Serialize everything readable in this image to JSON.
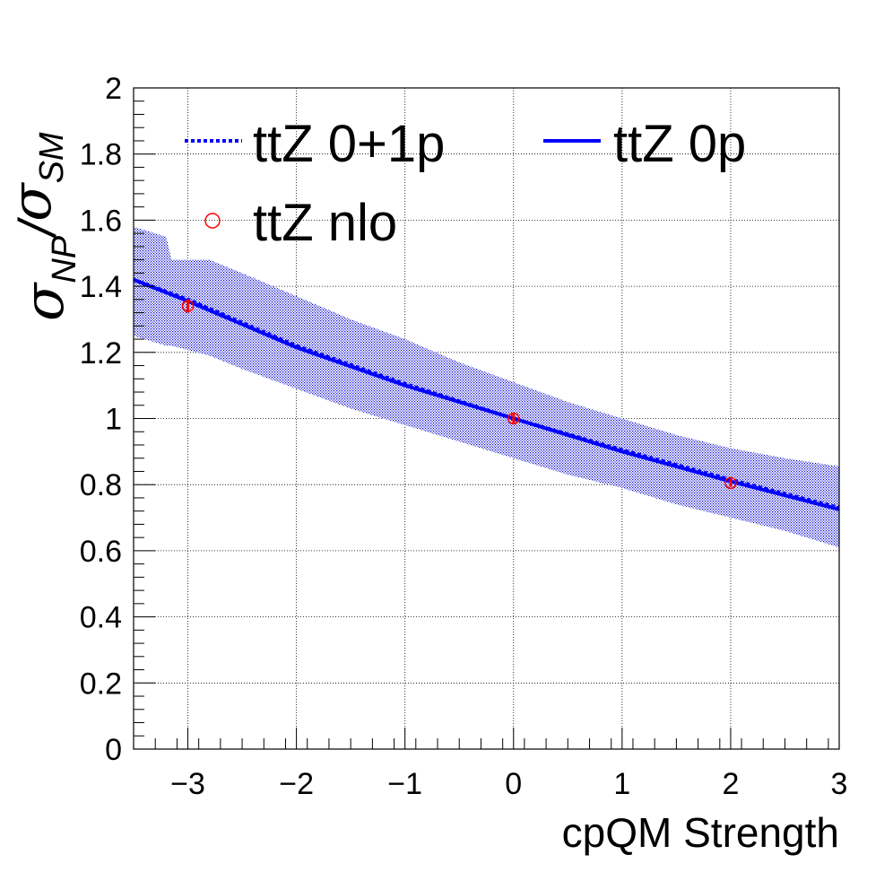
{
  "chart_data": {
    "type": "line",
    "xlabel": "cpQM Strength",
    "ylabel": {
      "numerator_symbol": "σ",
      "numerator_sub": "NP",
      "separator": "/",
      "denominator_symbol": "σ",
      "denominator_sub": "SM"
    },
    "xlim": [
      -3.5,
      3.0
    ],
    "ylim": [
      0,
      2.0
    ],
    "x_ticks": [
      -3,
      -2,
      -1,
      0,
      1,
      2,
      3
    ],
    "x_tick_labels": [
      "−3",
      "−2",
      "−1",
      "0",
      "1",
      "2",
      "3"
    ],
    "y_ticks": [
      0,
      0.2,
      0.4,
      0.6,
      0.8,
      1.0,
      1.2,
      1.4,
      1.6,
      1.8,
      2.0
    ],
    "y_tick_labels": [
      "0",
      "0.2",
      "0.4",
      "0.6",
      "0.8",
      "1",
      "1.2",
      "1.4",
      "1.6",
      "1.8",
      "2"
    ],
    "grid": true,
    "legend_position": "top",
    "series": [
      {
        "name": "ttZ 0+1p",
        "style": "dotted-line",
        "color": "#0000ff",
        "x": [
          -3.5,
          -3.0,
          -2.0,
          -1.0,
          0.0,
          1.0,
          2.0,
          3.0
        ],
        "y": [
          1.42,
          1.36,
          1.22,
          1.105,
          1.0,
          0.905,
          0.815,
          0.73
        ]
      },
      {
        "name": "ttZ 0p",
        "style": "solid-line",
        "color": "#0000ff",
        "x": [
          -3.5,
          -3.0,
          -2.0,
          -1.0,
          0.0,
          1.0,
          2.0,
          3.0
        ],
        "y": [
          1.42,
          1.355,
          1.215,
          1.1,
          1.0,
          0.9,
          0.81,
          0.725
        ]
      },
      {
        "name": "ttZ nlo",
        "style": "open-circle-markers",
        "color": "#ff0000",
        "x": [
          -3.0,
          0.0,
          2.0
        ],
        "y": [
          1.34,
          1.0,
          0.805
        ],
        "yerr": [
          0.02,
          0.015,
          0.012
        ]
      }
    ],
    "uncertainty_band": {
      "color": "#0000cc",
      "fill": "hatched",
      "points": [
        {
          "x": -3.5,
          "low": 1.25,
          "high": 1.58
        },
        {
          "x": -3.2,
          "low": 1.22,
          "high": 1.55
        },
        {
          "x": -3.15,
          "low": 1.22,
          "high": 1.48
        },
        {
          "x": -2.8,
          "low": 1.19,
          "high": 1.48
        },
        {
          "x": -2.5,
          "low": 1.15,
          "high": 1.44
        },
        {
          "x": -2.0,
          "low": 1.09,
          "high": 1.37
        },
        {
          "x": -1.5,
          "low": 1.03,
          "high": 1.3
        },
        {
          "x": -1.0,
          "low": 0.98,
          "high": 1.24
        },
        {
          "x": -0.5,
          "low": 0.93,
          "high": 1.17
        },
        {
          "x": 0.0,
          "low": 0.88,
          "high": 1.11
        },
        {
          "x": 0.5,
          "low": 0.83,
          "high": 1.05
        },
        {
          "x": 1.0,
          "low": 0.79,
          "high": 1.0
        },
        {
          "x": 1.5,
          "low": 0.74,
          "high": 0.95
        },
        {
          "x": 2.0,
          "low": 0.7,
          "high": 0.91
        },
        {
          "x": 2.5,
          "low": 0.66,
          "high": 0.88
        },
        {
          "x": 3.0,
          "low": 0.61,
          "high": 0.855
        }
      ]
    }
  }
}
